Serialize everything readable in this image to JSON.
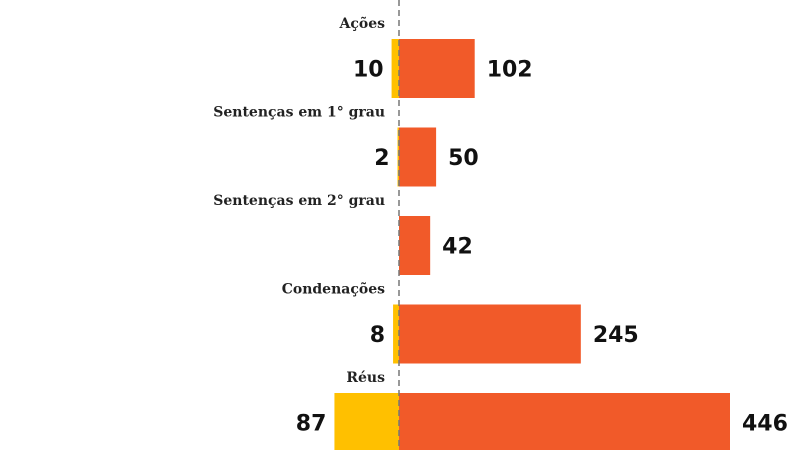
{
  "chart_data": {
    "type": "bar",
    "orientation": "horizontal-diverging",
    "categories": [
      "Ações",
      "Sentenças em 1° grau",
      "Sentenças em 2° grau",
      "Condenações",
      "Réus"
    ],
    "series": [
      {
        "values": [
          10,
          2,
          null,
          8,
          87
        ],
        "color": "#FFC000",
        "direction": "left"
      },
      {
        "values": [
          102,
          50,
          42,
          245,
          446
        ],
        "color": "#F15A29",
        "direction": "right"
      }
    ],
    "value_labels": {
      "left": [
        "10",
        "2",
        "",
        "8",
        "87"
      ],
      "right": [
        "102",
        "50",
        "42",
        "245",
        "446"
      ]
    },
    "center_line": "dashed",
    "grid": false,
    "legend": "none"
  }
}
